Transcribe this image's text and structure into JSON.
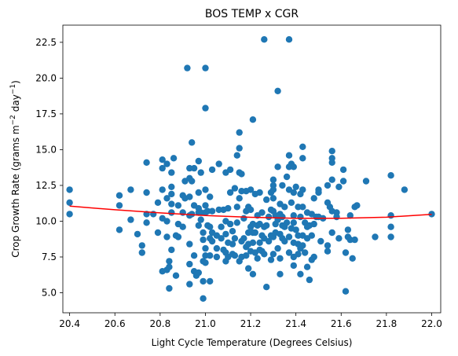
{
  "chart_data": {
    "type": "scatter",
    "title": "BOS TEMP x CGR",
    "xlabel": "Light Cycle Temperature (Degrees Celsius)",
    "ylabel_parts": [
      "Crop Growth Rate (grams m",
      "−2",
      " day",
      "−1",
      ")"
    ],
    "xlim": [
      20.37,
      22.04
    ],
    "ylim": [
      3.6,
      23.7
    ],
    "xticks": [
      "20.4",
      "20.6",
      "20.8",
      "21.0",
      "21.2",
      "21.4",
      "21.6",
      "21.8",
      "22.0"
    ],
    "yticks": [
      "5.0",
      "7.5",
      "10.0",
      "12.5",
      "15.0",
      "17.5",
      "20.0",
      "22.5"
    ],
    "grid": false,
    "colors": {
      "points": "#1f77b4",
      "fit": "#ff0000"
    },
    "points": [
      [
        20.4,
        12.2
      ],
      [
        20.4,
        11.3
      ],
      [
        20.4,
        10.5
      ],
      [
        20.62,
        11.8
      ],
      [
        20.62,
        11.1
      ],
      [
        20.62,
        9.4
      ],
      [
        20.67,
        12.2
      ],
      [
        20.67,
        10.1
      ],
      [
        20.7,
        9.1
      ],
      [
        20.72,
        8.3
      ],
      [
        20.72,
        7.8
      ],
      [
        20.74,
        14.1
      ],
      [
        20.74,
        12.0
      ],
      [
        20.74,
        10.5
      ],
      [
        20.74,
        9.9
      ],
      [
        20.77,
        10.5
      ],
      [
        20.79,
        11.3
      ],
      [
        20.79,
        9.2
      ],
      [
        20.81,
        14.3
      ],
      [
        20.81,
        13.7
      ],
      [
        20.81,
        12.2
      ],
      [
        20.81,
        10.2
      ],
      [
        20.81,
        6.5
      ],
      [
        20.83,
        14.0
      ],
      [
        20.83,
        11.6
      ],
      [
        20.83,
        10.0
      ],
      [
        20.83,
        8.9
      ],
      [
        20.83,
        6.6
      ],
      [
        20.84,
        7.2
      ],
      [
        20.84,
        6.8
      ],
      [
        20.84,
        5.3
      ],
      [
        20.85,
        13.4
      ],
      [
        20.85,
        12.4
      ],
      [
        20.85,
        11.9
      ],
      [
        20.85,
        11.2
      ],
      [
        20.85,
        10.6
      ],
      [
        20.85,
        8.0
      ],
      [
        20.86,
        14.4
      ],
      [
        20.87,
        9.0
      ],
      [
        20.87,
        6.2
      ],
      [
        20.88,
        11.1
      ],
      [
        20.88,
        9.8
      ],
      [
        20.88,
        8.9
      ],
      [
        20.9,
        11.8
      ],
      [
        20.9,
        10.6
      ],
      [
        20.9,
        9.6
      ],
      [
        20.91,
        12.8
      ],
      [
        20.91,
        11.6
      ],
      [
        20.92,
        20.7
      ],
      [
        20.93,
        13.7
      ],
      [
        20.93,
        13.0
      ],
      [
        20.93,
        11.7
      ],
      [
        20.93,
        10.4
      ],
      [
        20.93,
        8.4
      ],
      [
        20.93,
        7.0
      ],
      [
        20.93,
        5.6
      ],
      [
        20.94,
        15.5
      ],
      [
        20.94,
        12.8
      ],
      [
        20.94,
        10.5
      ],
      [
        20.95,
        13.7
      ],
      [
        20.95,
        11.1
      ],
      [
        20.95,
        7.6
      ],
      [
        20.95,
        6.5
      ],
      [
        20.96,
        6.2
      ],
      [
        20.97,
        14.2
      ],
      [
        20.97,
        12.0
      ],
      [
        20.97,
        10.9
      ],
      [
        20.97,
        10.6
      ],
      [
        20.97,
        9.7
      ],
      [
        20.97,
        6.4
      ],
      [
        20.98,
        13.4
      ],
      [
        20.98,
        10.6
      ],
      [
        20.98,
        10.1
      ],
      [
        20.99,
        9.2
      ],
      [
        20.99,
        8.7
      ],
      [
        20.99,
        7.2
      ],
      [
        20.99,
        5.8
      ],
      [
        20.99,
        4.6
      ],
      [
        21.0,
        20.7
      ],
      [
        21.0,
        17.9
      ],
      [
        21.0,
        12.2
      ],
      [
        21.0,
        11.1
      ],
      [
        21.0,
        10.6
      ],
      [
        21.0,
        8.1
      ],
      [
        21.0,
        7.6
      ],
      [
        21.0,
        7.1
      ],
      [
        21.01,
        10.7
      ],
      [
        21.01,
        9.7
      ],
      [
        21.02,
        11.7
      ],
      [
        21.02,
        9.6
      ],
      [
        21.02,
        8.8
      ],
      [
        21.02,
        7.6
      ],
      [
        21.02,
        5.8
      ],
      [
        21.03,
        13.6
      ],
      [
        21.03,
        10.7
      ],
      [
        21.03,
        9.2
      ],
      [
        21.03,
        8.6
      ],
      [
        21.05,
        9.0
      ],
      [
        21.05,
        8.1
      ],
      [
        21.05,
        7.5
      ],
      [
        21.06,
        14.0
      ],
      [
        21.06,
        10.8
      ],
      [
        21.07,
        9.6
      ],
      [
        21.07,
        8.8
      ],
      [
        21.08,
        10.8
      ],
      [
        21.08,
        8.0
      ],
      [
        21.09,
        13.4
      ],
      [
        21.09,
        10.0
      ],
      [
        21.09,
        9.1
      ],
      [
        21.09,
        7.8
      ],
      [
        21.09,
        7.2
      ],
      [
        21.1,
        10.9
      ],
      [
        21.1,
        8.5
      ],
      [
        21.1,
        7.5
      ],
      [
        21.11,
        13.6
      ],
      [
        21.11,
        12.0
      ],
      [
        21.11,
        9.8
      ],
      [
        21.12,
        9.3
      ],
      [
        21.12,
        8.4
      ],
      [
        21.12,
        7.7
      ],
      [
        21.13,
        12.3
      ],
      [
        21.13,
        8.8
      ],
      [
        21.13,
        7.6
      ],
      [
        21.14,
        14.6
      ],
      [
        21.14,
        11.0
      ],
      [
        21.14,
        9.9
      ],
      [
        21.15,
        16.2
      ],
      [
        21.15,
        15.1
      ],
      [
        21.15,
        13.4
      ],
      [
        21.15,
        11.6
      ],
      [
        21.15,
        7.2
      ],
      [
        21.16,
        13.3
      ],
      [
        21.16,
        12.1
      ],
      [
        21.16,
        8.6
      ],
      [
        21.16,
        7.5
      ],
      [
        21.17,
        10.2
      ],
      [
        21.17,
        8.8
      ],
      [
        21.18,
        12.1
      ],
      [
        21.18,
        10.7
      ],
      [
        21.18,
        8.2
      ],
      [
        21.18,
        7.6
      ],
      [
        21.19,
        11.0
      ],
      [
        21.19,
        9.2
      ],
      [
        21.19,
        8.4
      ],
      [
        21.19,
        6.7
      ],
      [
        21.2,
        12.2
      ],
      [
        21.2,
        10.8
      ],
      [
        21.2,
        9.6
      ],
      [
        21.2,
        7.9
      ],
      [
        21.21,
        17.1
      ],
      [
        21.21,
        9.8
      ],
      [
        21.21,
        9.2
      ],
      [
        21.21,
        8.5
      ],
      [
        21.21,
        6.3
      ],
      [
        21.22,
        11.9
      ],
      [
        21.22,
        9.2
      ],
      [
        21.22,
        7.8
      ],
      [
        21.23,
        10.4
      ],
      [
        21.23,
        9.7
      ],
      [
        21.23,
        7.4
      ],
      [
        21.24,
        12.0
      ],
      [
        21.24,
        9.8
      ],
      [
        21.24,
        8.5
      ],
      [
        21.24,
        8.0
      ],
      [
        21.25,
        10.6
      ],
      [
        21.25,
        9.0
      ],
      [
        21.25,
        7.9
      ],
      [
        21.26,
        22.7
      ],
      [
        21.26,
        9.6
      ],
      [
        21.26,
        8.8
      ],
      [
        21.26,
        7.7
      ],
      [
        21.27,
        11.5
      ],
      [
        21.27,
        9.7
      ],
      [
        21.27,
        5.4
      ],
      [
        21.28,
        10.3
      ],
      [
        21.28,
        8.6
      ],
      [
        21.29,
        12.0
      ],
      [
        21.29,
        10.8
      ],
      [
        21.29,
        9.0
      ],
      [
        21.29,
        7.3
      ],
      [
        21.3,
        12.9
      ],
      [
        21.3,
        12.5
      ],
      [
        21.3,
        12.2
      ],
      [
        21.3,
        11.6
      ],
      [
        21.3,
        10.7
      ],
      [
        21.3,
        8.9
      ],
      [
        21.3,
        7.7
      ],
      [
        21.31,
        10.4
      ],
      [
        21.31,
        9.8
      ],
      [
        21.31,
        9.2
      ],
      [
        21.32,
        19.1
      ],
      [
        21.32,
        13.8
      ],
      [
        21.32,
        10.1
      ],
      [
        21.32,
        8.1
      ],
      [
        21.33,
        11.2
      ],
      [
        21.33,
        10.5
      ],
      [
        21.33,
        9.1
      ],
      [
        21.33,
        7.4
      ],
      [
        21.33,
        6.3
      ],
      [
        21.34,
        12.5
      ],
      [
        21.34,
        10.3
      ],
      [
        21.34,
        9.7
      ],
      [
        21.34,
        8.8
      ],
      [
        21.35,
        11.0
      ],
      [
        21.35,
        9.6
      ],
      [
        21.35,
        8.6
      ],
      [
        21.36,
        13.1
      ],
      [
        21.36,
        9.9
      ],
      [
        21.37,
        22.7
      ],
      [
        21.37,
        14.6
      ],
      [
        21.37,
        13.8
      ],
      [
        21.37,
        12.2
      ],
      [
        21.37,
        8.9
      ],
      [
        21.37,
        7.8
      ],
      [
        21.38,
        14.0
      ],
      [
        21.38,
        11.3
      ],
      [
        21.38,
        9.5
      ],
      [
        21.39,
        13.8
      ],
      [
        21.39,
        12.0
      ],
      [
        21.39,
        10.4
      ],
      [
        21.39,
        9.9
      ],
      [
        21.39,
        8.5
      ],
      [
        21.39,
        7.5
      ],
      [
        21.39,
        6.9
      ],
      [
        21.4,
        12.4
      ],
      [
        21.4,
        9.4
      ],
      [
        21.41,
        11.0
      ],
      [
        21.41,
        9.0
      ],
      [
        21.41,
        8.4
      ],
      [
        21.41,
        7.7
      ],
      [
        21.42,
        11.9
      ],
      [
        21.42,
        10.3
      ],
      [
        21.42,
        8.1
      ],
      [
        21.42,
        6.3
      ],
      [
        21.43,
        15.2
      ],
      [
        21.43,
        14.4
      ],
      [
        21.43,
        12.2
      ],
      [
        21.43,
        11.0
      ],
      [
        21.43,
        9.0
      ],
      [
        21.43,
        8.3
      ],
      [
        21.44,
        9.9
      ],
      [
        21.44,
        7.8
      ],
      [
        21.45,
        10.6
      ],
      [
        21.45,
        9.6
      ],
      [
        21.45,
        8.8
      ],
      [
        21.45,
        6.8
      ],
      [
        21.46,
        9.7
      ],
      [
        21.46,
        5.9
      ],
      [
        21.47,
        10.5
      ],
      [
        21.47,
        9.0
      ],
      [
        21.47,
        7.3
      ],
      [
        21.48,
        11.6
      ],
      [
        21.48,
        9.8
      ],
      [
        21.48,
        7.5
      ],
      [
        21.49,
        10.3
      ],
      [
        21.5,
        12.2
      ],
      [
        21.5,
        12.0
      ],
      [
        21.5,
        10.3
      ],
      [
        21.51,
        8.6
      ],
      [
        21.52,
        10.2
      ],
      [
        21.54,
        12.5
      ],
      [
        21.54,
        11.3
      ],
      [
        21.54,
        8.3
      ],
      [
        21.54,
        7.9
      ],
      [
        21.55,
        11.0
      ],
      [
        21.56,
        14.9
      ],
      [
        21.56,
        14.4
      ],
      [
        21.56,
        14.1
      ],
      [
        21.56,
        12.9
      ],
      [
        21.56,
        10.7
      ],
      [
        21.56,
        9.2
      ],
      [
        21.58,
        10.6
      ],
      [
        21.58,
        10.3
      ],
      [
        21.59,
        12.4
      ],
      [
        21.59,
        8.8
      ],
      [
        21.61,
        13.6
      ],
      [
        21.61,
        12.8
      ],
      [
        21.62,
        7.8
      ],
      [
        21.62,
        5.1
      ],
      [
        21.63,
        9.4
      ],
      [
        21.63,
        8.9
      ],
      [
        21.64,
        10.4
      ],
      [
        21.64,
        8.7
      ],
      [
        21.65,
        7.4
      ],
      [
        21.66,
        11.0
      ],
      [
        21.66,
        8.7
      ],
      [
        21.67,
        11.1
      ],
      [
        21.71,
        12.8
      ],
      [
        21.75,
        8.9
      ],
      [
        21.82,
        13.2
      ],
      [
        21.82,
        10.4
      ],
      [
        21.82,
        9.6
      ],
      [
        21.82,
        8.9
      ],
      [
        21.88,
        12.2
      ],
      [
        22.0,
        10.5
      ]
    ],
    "fit_line": {
      "x": [
        20.4,
        20.6,
        20.8,
        21.0,
        21.2,
        21.4,
        21.6,
        21.8,
        22.0
      ],
      "y": [
        11.05,
        10.8,
        10.58,
        10.4,
        10.27,
        10.2,
        10.2,
        10.28,
        10.48
      ]
    }
  }
}
